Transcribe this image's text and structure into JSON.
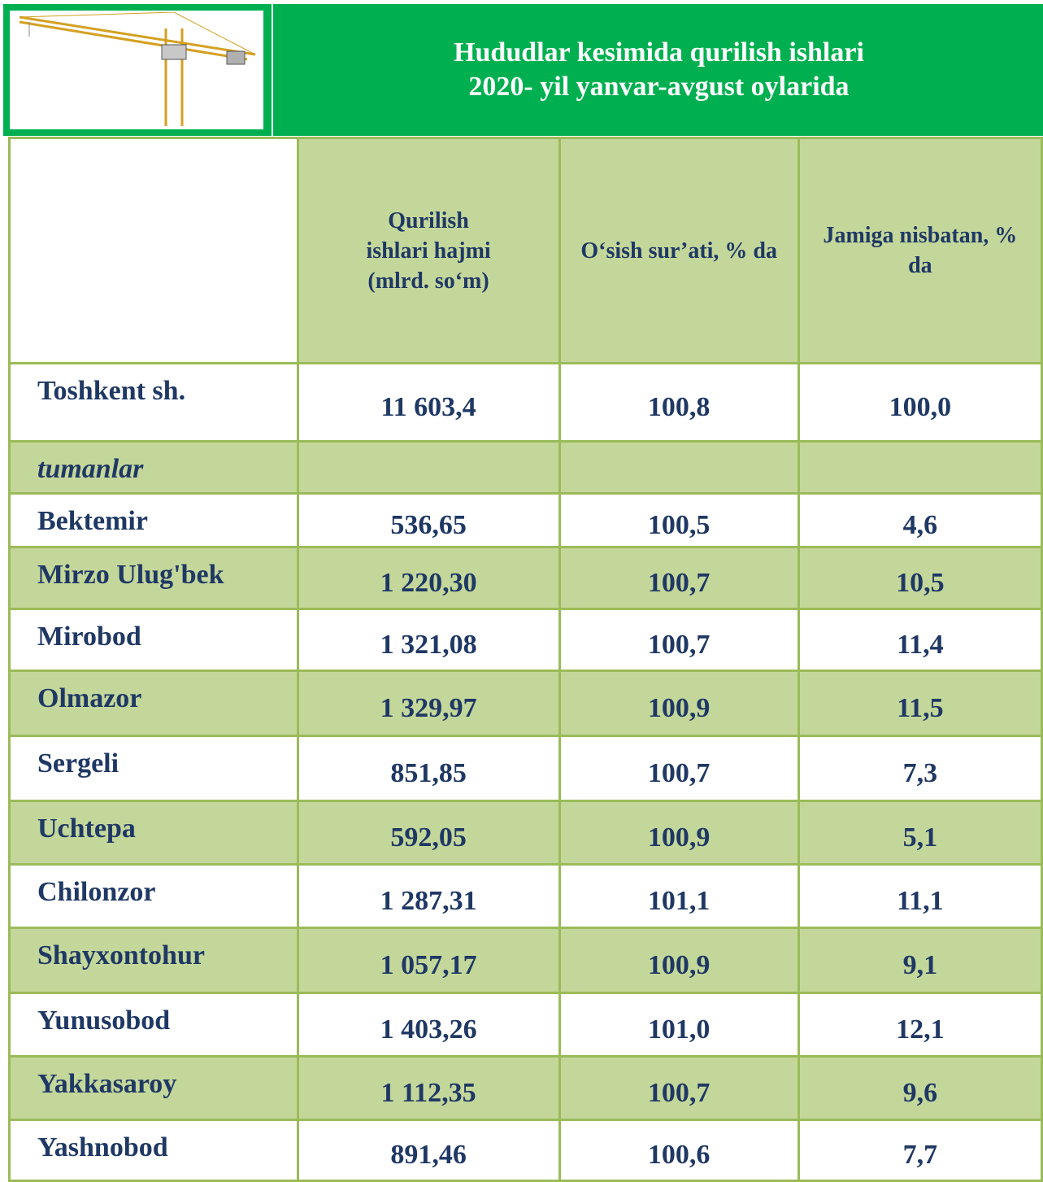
{
  "header": {
    "title": [
      "Hududlar kesimida qurilish ishlari",
      "2020- yil yanvar-avgust oylarida"
    ]
  },
  "table": {
    "columns": [
      "Qurilish ishlari hajmi (mlrd. so‘m)",
      "O‘sish sur’ati, % da",
      "Jamiga nisbatan, % da"
    ],
    "rows": [
      [
        "Toshkent sh.",
        "11 603,4",
        "100,8",
        "100,0"
      ],
      [
        "tumanlar"
      ],
      [
        "Bektemir",
        "536,65",
        "100,5",
        "4,6"
      ],
      [
        "Mirzo Ulug'bek",
        "1 220,30",
        "100,7",
        "10,5"
      ],
      [
        "Mirobod",
        "1 321,08",
        "100,7",
        "11,4"
      ],
      [
        "Olmazor",
        "1 329,97",
        "100,9",
        "11,5"
      ],
      [
        "Sergeli",
        "851,85",
        "100,7",
        "7,3"
      ],
      [
        "Uchtepa",
        "592,05",
        "100,9",
        "5,1"
      ],
      [
        "Chilonzor",
        "1 287,31",
        "101,1",
        "11,1"
      ],
      [
        "Shayxontohur",
        "1 057,17",
        "100,9",
        "9,1"
      ],
      [
        "Yunusobod",
        "1 403,26",
        "101,0",
        "12,1"
      ],
      [
        "Yakkasaroy",
        "1 112,35",
        "100,7",
        "9,6"
      ],
      [
        "Yashnobod",
        "891,46",
        "100,6",
        "7,7"
      ]
    ]
  }
}
